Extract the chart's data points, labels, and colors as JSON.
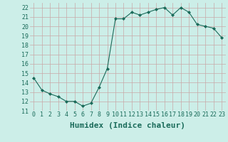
{
  "x": [
    0,
    1,
    2,
    3,
    4,
    5,
    6,
    7,
    8,
    9,
    10,
    11,
    12,
    13,
    14,
    15,
    16,
    17,
    18,
    19,
    20,
    21,
    22,
    23
  ],
  "y": [
    14.5,
    13.2,
    12.8,
    12.5,
    12.0,
    12.0,
    11.5,
    11.8,
    13.5,
    15.5,
    20.8,
    20.8,
    21.5,
    21.2,
    21.5,
    21.8,
    22.0,
    21.2,
    22.0,
    21.5,
    20.2,
    20.0,
    19.8,
    18.8
  ],
  "xlabel": "Humidex (Indice chaleur)",
  "line_color": "#1a6b5a",
  "marker": "D",
  "marker_size": 2,
  "bg_color": "#cceee8",
  "grid_color": "#c8a8a8",
  "xlim": [
    -0.5,
    23.5
  ],
  "ylim": [
    11,
    22.5
  ],
  "yticks": [
    11,
    12,
    13,
    14,
    15,
    16,
    17,
    18,
    19,
    20,
    21,
    22
  ],
  "xticks": [
    0,
    1,
    2,
    3,
    4,
    5,
    6,
    7,
    8,
    9,
    10,
    11,
    12,
    13,
    14,
    15,
    16,
    17,
    18,
    19,
    20,
    21,
    22,
    23
  ],
  "tick_fontsize": 6,
  "xlabel_fontsize": 8
}
